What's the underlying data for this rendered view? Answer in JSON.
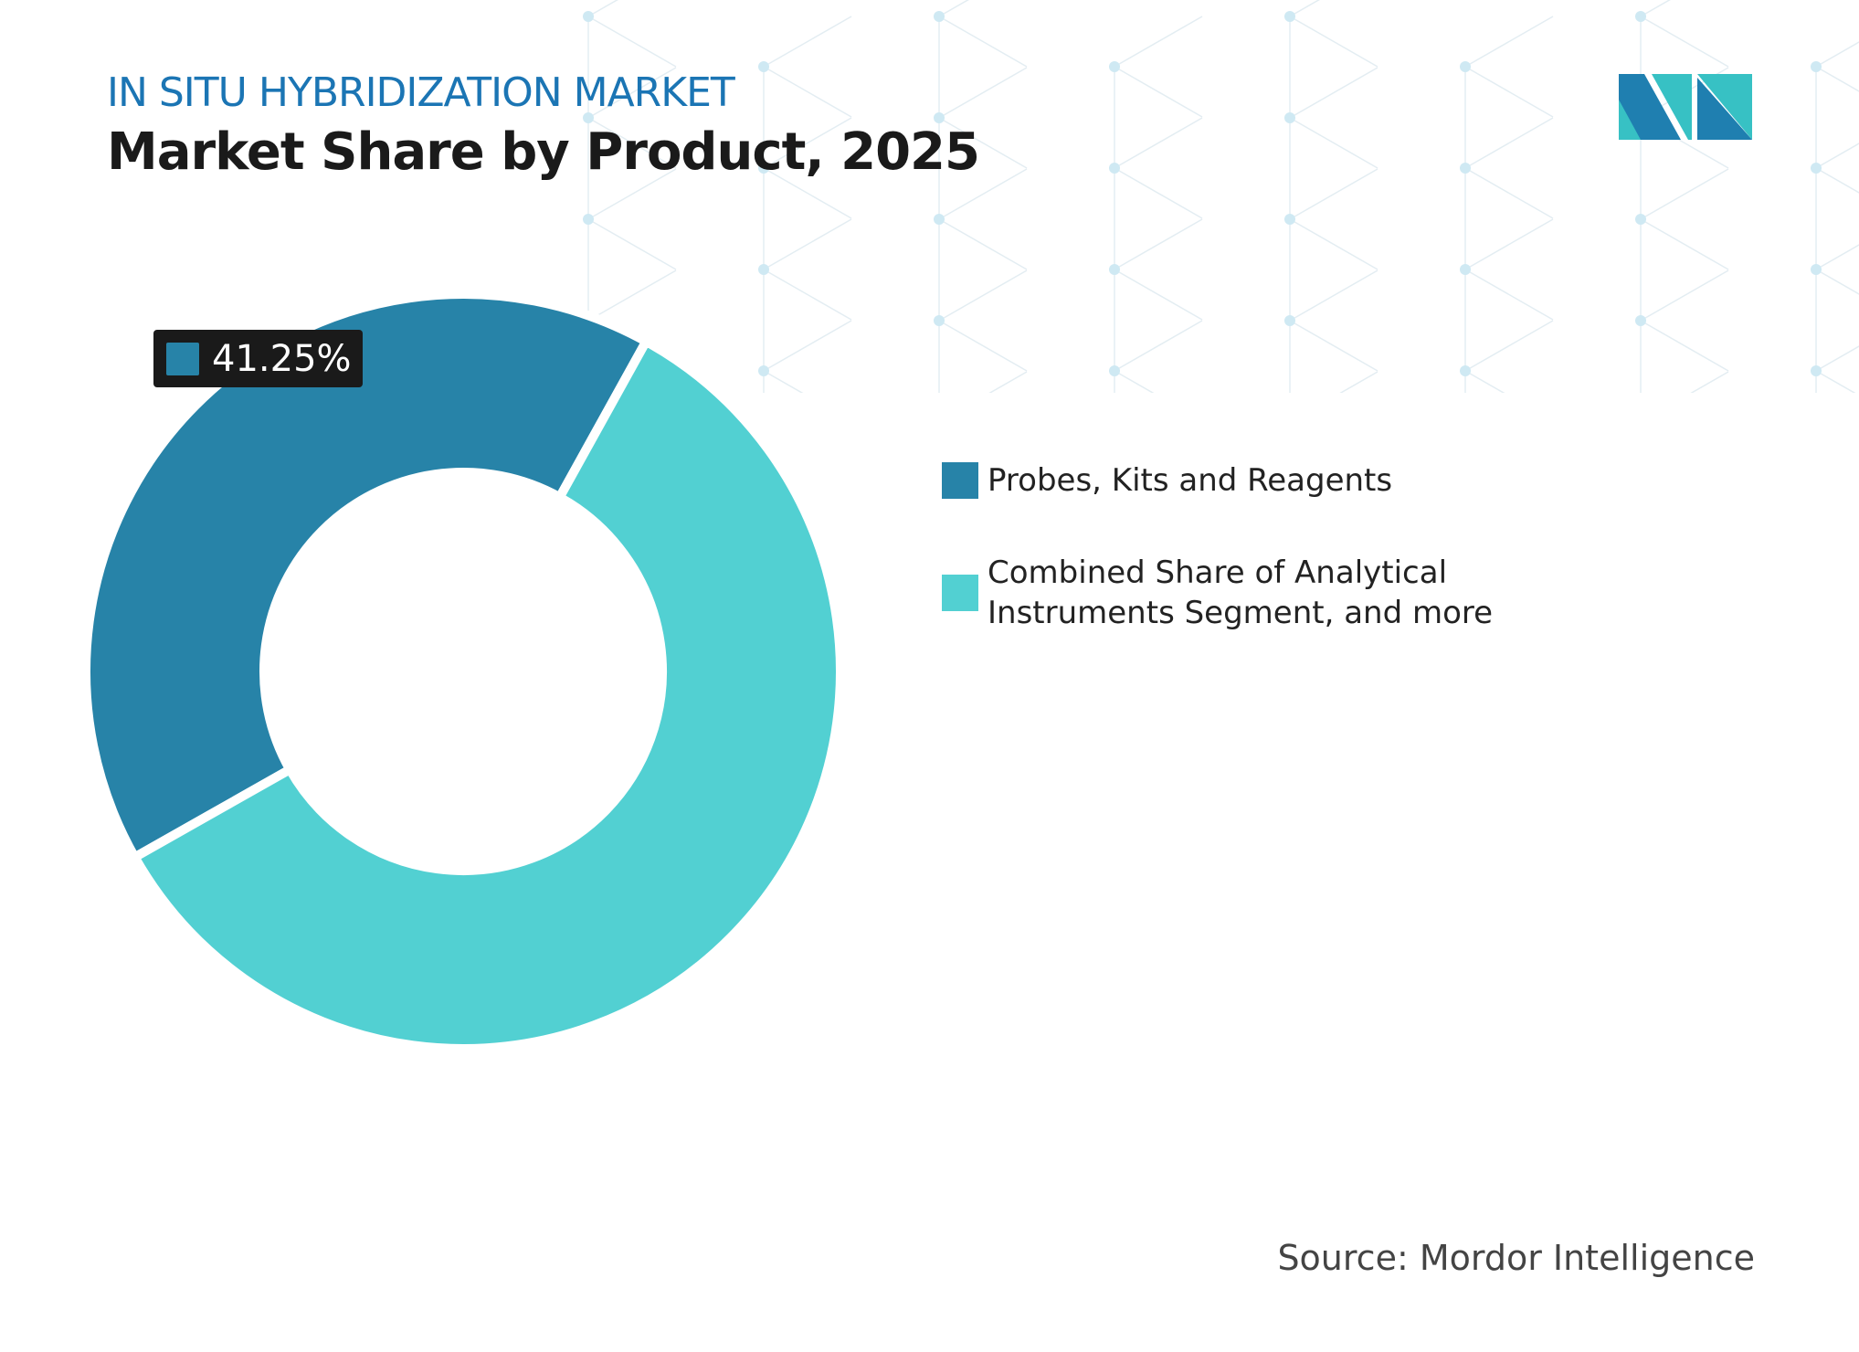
{
  "header": {
    "kicker": "IN SITU HYBRIDIZATION MARKET",
    "title": "Market Share by Product, 2025"
  },
  "chart_data": {
    "type": "pie",
    "variant": "donut",
    "categories": [
      "Probes, Kits and Reagents",
      "Combined Share of Analytical Instruments Segment, and more"
    ],
    "values": [
      41.25,
      58.75
    ],
    "colors": [
      "#2783a8",
      "#52d0d2"
    ],
    "data_labels": [
      {
        "category": "Probes, Kits and Reagents",
        "text": "41.25%"
      }
    ],
    "legend_placement": "right",
    "legend": [
      {
        "lines": [
          "Probes, Kits and Reagents"
        ]
      },
      {
        "lines": [
          "Combined Share of Analytical",
          "Instruments Segment, and more"
        ]
      }
    ]
  },
  "source": "Source: Mordor Intelligence",
  "logo": {
    "text": "MI",
    "colors": [
      "#1f7fb0",
      "#37c1c4"
    ]
  }
}
